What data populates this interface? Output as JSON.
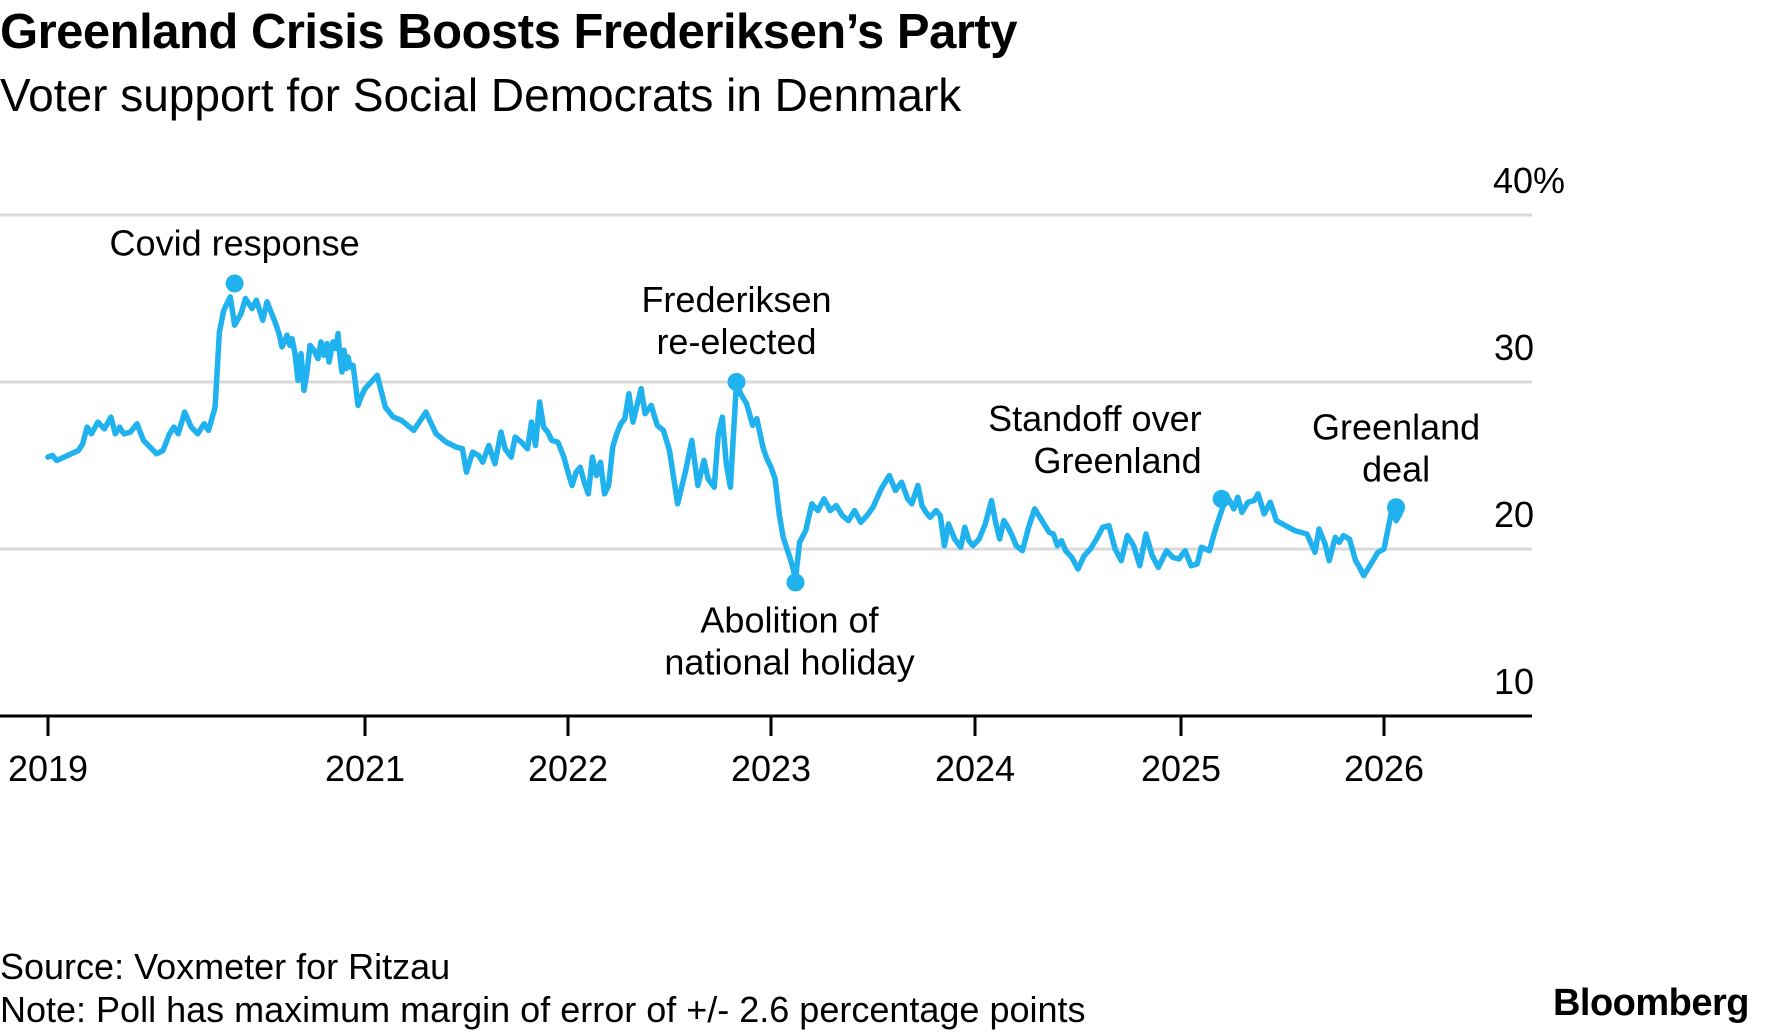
{
  "title": "Greenland Crisis Boosts Frederiksen’s Party",
  "subtitle": "Voter support for Social Democrats in Denmark",
  "source": "Source: Voxmeter for Ritzau",
  "note": "Note: Poll has maximum margin of error of +/- 2.6 percentage points",
  "logo": "Bloomberg",
  "colors": {
    "line": "#1fb2ee",
    "grid": "#d9d9d9",
    "axis": "#000000"
  },
  "chart_data": {
    "type": "line",
    "title": "Greenland Crisis Boosts Frederiksen’s Party",
    "subtitle": "Voter support for Social Democrats in Denmark",
    "xlabel": "",
    "ylabel": "",
    "x_unit": "year (decimal)",
    "xlim": [
      2019.0,
      2026.6
    ],
    "ylim": [
      10,
      40
    ],
    "x_ticks": [
      2019,
      2021,
      2022,
      2023,
      2024,
      2025,
      2026
    ],
    "x_tick_labels": [
      "2019",
      "2021",
      "2022",
      "2023",
      "2024",
      "2025",
      "2026"
    ],
    "y_ticks": [
      40,
      30,
      20,
      10
    ],
    "y_tick_labels": [
      "40%",
      "30",
      "20",
      "10"
    ],
    "grid": true,
    "series": [
      {
        "name": "Social Democrats",
        "points": [
          [
            2019.0,
            25.5
          ],
          [
            2019.02,
            25.6
          ],
          [
            2019.04,
            25.3
          ],
          [
            2019.14,
            25.9
          ],
          [
            2019.16,
            26.3
          ],
          [
            2019.18,
            27.3
          ],
          [
            2019.2,
            26.9
          ],
          [
            2019.23,
            27.6
          ],
          [
            2019.26,
            27.2
          ],
          [
            2019.29,
            27.9
          ],
          [
            2019.31,
            26.9
          ],
          [
            2019.33,
            27.3
          ],
          [
            2019.35,
            26.9
          ],
          [
            2019.38,
            27.0
          ],
          [
            2019.41,
            27.5
          ],
          [
            2019.44,
            26.5
          ],
          [
            2019.47,
            26.1
          ],
          [
            2019.5,
            25.7
          ],
          [
            2019.53,
            25.9
          ],
          [
            2019.56,
            26.9
          ],
          [
            2019.58,
            27.3
          ],
          [
            2019.6,
            26.9
          ],
          [
            2019.63,
            28.2
          ],
          [
            2019.66,
            27.3
          ],
          [
            2019.69,
            26.9
          ],
          [
            2019.72,
            27.5
          ],
          [
            2019.74,
            27.1
          ],
          [
            2019.77,
            28.5
          ],
          [
            2019.79,
            33.0
          ],
          [
            2019.81,
            34.3
          ],
          [
            2019.84,
            35.1
          ],
          [
            2019.86,
            33.4
          ],
          [
            2019.89,
            34.1
          ],
          [
            2019.91,
            35.0
          ],
          [
            2019.94,
            34.4
          ],
          [
            2019.96,
            34.9
          ],
          [
            2019.99,
            33.7
          ],
          [
            2020.02,
            34.8
          ],
          [
            2020.06,
            34.2
          ],
          [
            2020.1,
            33.6
          ],
          [
            2020.14,
            32.9
          ],
          [
            2020.17,
            32.1
          ],
          [
            2020.2,
            32.5
          ],
          [
            2020.22,
            32.8
          ],
          [
            2020.25,
            32.2
          ],
          [
            2020.27,
            32.6
          ],
          [
            2020.3,
            31.7
          ],
          [
            2020.33,
            30.1
          ],
          [
            2020.36,
            31.7
          ],
          [
            2020.39,
            29.5
          ],
          [
            2020.42,
            30.6
          ],
          [
            2020.45,
            32.2
          ],
          [
            2020.49,
            31.9
          ],
          [
            2020.53,
            31.4
          ],
          [
            2020.56,
            32.4
          ],
          [
            2020.59,
            31.6
          ],
          [
            2020.62,
            32.3
          ],
          [
            2020.64,
            31.2
          ],
          [
            2020.66,
            31.8
          ],
          [
            2020.68,
            32.4
          ],
          [
            2020.71,
            32.0
          ],
          [
            2020.73,
            32.9
          ],
          [
            2020.75,
            31.5
          ],
          [
            2020.77,
            30.6
          ],
          [
            2020.79,
            31.9
          ],
          [
            2020.81,
            30.8
          ],
          [
            2020.83,
            31.5
          ],
          [
            2020.85,
            30.9
          ],
          [
            2020.88,
            31.0
          ],
          [
            2020.9,
            30.1
          ],
          [
            2020.93,
            28.6
          ],
          [
            2020.96,
            29.1
          ],
          [
            2021.0,
            29.6
          ],
          [
            2021.06,
            30.4
          ],
          [
            2021.1,
            28.5
          ],
          [
            2021.14,
            27.9
          ],
          [
            2021.18,
            27.7
          ],
          [
            2021.24,
            27.1
          ],
          [
            2021.3,
            28.2
          ],
          [
            2021.35,
            26.9
          ],
          [
            2021.4,
            26.4
          ],
          [
            2021.45,
            26.1
          ],
          [
            2021.48,
            26.0
          ],
          [
            2021.5,
            24.6
          ],
          [
            2021.53,
            25.8
          ],
          [
            2021.56,
            25.6
          ],
          [
            2021.58,
            25.2
          ],
          [
            2021.61,
            26.2
          ],
          [
            2021.64,
            25.1
          ],
          [
            2021.67,
            27.0
          ],
          [
            2021.69,
            26.0
          ],
          [
            2021.72,
            25.5
          ],
          [
            2021.74,
            26.7
          ],
          [
            2021.77,
            26.4
          ],
          [
            2021.8,
            26.0
          ],
          [
            2021.82,
            27.6
          ],
          [
            2021.84,
            26.2
          ],
          [
            2021.86,
            28.8
          ],
          [
            2021.88,
            27.3
          ],
          [
            2021.9,
            27.0
          ],
          [
            2021.92,
            26.5
          ],
          [
            2021.95,
            26.4
          ],
          [
            2021.98,
            25.5
          ],
          [
            2022.0,
            24.6
          ],
          [
            2022.02,
            23.8
          ],
          [
            2022.04,
            24.6
          ],
          [
            2022.06,
            24.9
          ],
          [
            2022.08,
            24.0
          ],
          [
            2022.1,
            23.3
          ],
          [
            2022.12,
            25.5
          ],
          [
            2022.14,
            24.4
          ],
          [
            2022.16,
            25.2
          ],
          [
            2022.18,
            23.3
          ],
          [
            2022.2,
            23.8
          ],
          [
            2022.22,
            26.1
          ],
          [
            2022.24,
            26.9
          ],
          [
            2022.26,
            27.5
          ],
          [
            2022.28,
            27.8
          ],
          [
            2022.3,
            29.3
          ],
          [
            2022.32,
            27.6
          ],
          [
            2022.34,
            28.6
          ],
          [
            2022.36,
            29.6
          ],
          [
            2022.38,
            28.1
          ],
          [
            2022.41,
            28.6
          ],
          [
            2022.44,
            27.4
          ],
          [
            2022.47,
            27.1
          ],
          [
            2022.5,
            25.9
          ],
          [
            2022.54,
            22.7
          ],
          [
            2022.58,
            24.7
          ],
          [
            2022.61,
            26.5
          ],
          [
            2022.64,
            23.8
          ],
          [
            2022.67,
            25.3
          ],
          [
            2022.69,
            24.2
          ],
          [
            2022.72,
            23.7
          ],
          [
            2022.74,
            26.8
          ],
          [
            2022.76,
            27.9
          ],
          [
            2022.78,
            25.1
          ],
          [
            2022.8,
            23.7
          ],
          [
            2022.83,
            30.0
          ],
          [
            2022.85,
            29.3
          ],
          [
            2022.88,
            28.7
          ],
          [
            2022.91,
            27.4
          ],
          [
            2022.93,
            27.8
          ],
          [
            2022.96,
            26.1
          ],
          [
            2022.98,
            25.4
          ],
          [
            2023.0,
            24.9
          ],
          [
            2023.02,
            24.2
          ],
          [
            2023.04,
            22.1
          ],
          [
            2023.06,
            20.7
          ],
          [
            2023.1,
            19.2
          ],
          [
            2023.12,
            18.2
          ],
          [
            2023.14,
            20.4
          ],
          [
            2023.17,
            21.1
          ],
          [
            2023.2,
            22.7
          ],
          [
            2023.23,
            22.3
          ],
          [
            2023.26,
            23.0
          ],
          [
            2023.29,
            22.3
          ],
          [
            2023.32,
            22.6
          ],
          [
            2023.35,
            22.0
          ],
          [
            2023.38,
            21.7
          ],
          [
            2023.41,
            22.3
          ],
          [
            2023.44,
            21.6
          ],
          [
            2023.47,
            22.0
          ],
          [
            2023.5,
            22.5
          ],
          [
            2023.54,
            23.6
          ],
          [
            2023.58,
            24.4
          ],
          [
            2023.61,
            23.5
          ],
          [
            2023.64,
            24.0
          ],
          [
            2023.67,
            23.0
          ],
          [
            2023.69,
            22.7
          ],
          [
            2023.72,
            23.8
          ],
          [
            2023.74,
            22.6
          ],
          [
            2023.76,
            22.2
          ],
          [
            2023.78,
            21.9
          ],
          [
            2023.81,
            22.3
          ],
          [
            2023.83,
            22.0
          ],
          [
            2023.85,
            20.2
          ],
          [
            2023.87,
            21.5
          ],
          [
            2023.9,
            20.6
          ],
          [
            2023.93,
            20.1
          ],
          [
            2023.95,
            21.3
          ],
          [
            2023.97,
            20.5
          ],
          [
            2023.99,
            20.2
          ],
          [
            2024.02,
            20.6
          ],
          [
            2024.05,
            21.5
          ],
          [
            2024.08,
            22.9
          ],
          [
            2024.1,
            21.6
          ],
          [
            2024.12,
            20.6
          ],
          [
            2024.14,
            21.7
          ],
          [
            2024.16,
            21.3
          ],
          [
            2024.18,
            20.8
          ],
          [
            2024.2,
            20.2
          ],
          [
            2024.23,
            19.9
          ],
          [
            2024.26,
            21.3
          ],
          [
            2024.29,
            22.4
          ],
          [
            2024.32,
            21.8
          ],
          [
            2024.36,
            21.0
          ],
          [
            2024.38,
            20.9
          ],
          [
            2024.4,
            20.2
          ],
          [
            2024.42,
            20.5
          ],
          [
            2024.44,
            19.9
          ],
          [
            2024.47,
            19.5
          ],
          [
            2024.5,
            18.8
          ],
          [
            2024.53,
            19.6
          ],
          [
            2024.56,
            20.0
          ],
          [
            2024.59,
            20.6
          ],
          [
            2024.62,
            21.3
          ],
          [
            2024.65,
            21.4
          ],
          [
            2024.68,
            20.0
          ],
          [
            2024.71,
            19.3
          ],
          [
            2024.74,
            20.8
          ],
          [
            2024.77,
            20.2
          ],
          [
            2024.8,
            19.0
          ],
          [
            2024.83,
            20.9
          ],
          [
            2024.86,
            19.6
          ],
          [
            2024.89,
            18.9
          ],
          [
            2024.93,
            19.9
          ],
          [
            2024.96,
            19.5
          ],
          [
            2024.99,
            19.4
          ],
          [
            2025.02,
            19.9
          ],
          [
            2025.05,
            19.0
          ],
          [
            2025.08,
            19.1
          ],
          [
            2025.1,
            20.1
          ],
          [
            2025.14,
            19.9
          ],
          [
            2025.17,
            21.2
          ],
          [
            2025.2,
            22.3
          ],
          [
            2025.22,
            23.1
          ],
          [
            2025.24,
            22.9
          ],
          [
            2025.26,
            22.4
          ],
          [
            2025.28,
            23.1
          ],
          [
            2025.3,
            22.2
          ],
          [
            2025.33,
            22.8
          ],
          [
            2025.36,
            22.9
          ],
          [
            2025.38,
            23.3
          ],
          [
            2025.41,
            22.1
          ],
          [
            2025.44,
            22.8
          ],
          [
            2025.47,
            21.7
          ],
          [
            2025.5,
            21.5
          ],
          [
            2025.56,
            21.1
          ],
          [
            2025.62,
            20.9
          ],
          [
            2025.66,
            19.8
          ],
          [
            2025.68,
            21.2
          ],
          [
            2025.71,
            20.3
          ],
          [
            2025.73,
            19.3
          ],
          [
            2025.76,
            20.7
          ],
          [
            2025.78,
            20.4
          ],
          [
            2025.8,
            20.8
          ],
          [
            2025.83,
            20.6
          ],
          [
            2025.86,
            19.3
          ],
          [
            2025.88,
            18.9
          ],
          [
            2025.9,
            18.4
          ],
          [
            2025.93,
            19.0
          ],
          [
            2025.95,
            19.4
          ],
          [
            2025.97,
            19.8
          ],
          [
            2026.0,
            20.0
          ],
          [
            2026.02,
            21.2
          ],
          [
            2026.04,
            22.4
          ],
          [
            2026.06,
            21.7
          ],
          [
            2026.08,
            22.1
          ]
        ]
      }
    ],
    "annotations": [
      {
        "label_lines": [
          "Covid response"
        ],
        "x": 2019.86,
        "y": 35.9
      },
      {
        "label_lines": [
          "Frederiksen",
          "re-elected"
        ],
        "x": 2022.83,
        "y": 30.0
      },
      {
        "label_lines": [
          "Abolition of",
          "national holiday"
        ],
        "x": 2023.12,
        "y": 18.0
      },
      {
        "label_lines": [
          "Standoff over",
          "Greenland"
        ],
        "x": 2025.2,
        "y": 23.0
      },
      {
        "label_lines": [
          "Greenland",
          "deal"
        ],
        "x": 2026.06,
        "y": 22.5
      }
    ]
  }
}
